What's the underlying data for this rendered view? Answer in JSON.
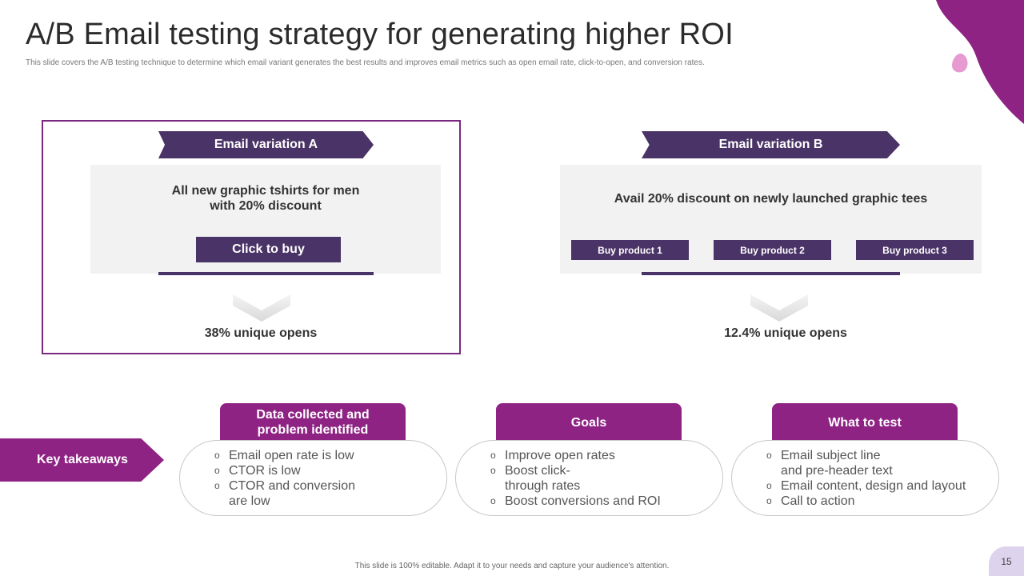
{
  "slide": {
    "title": "A/B Email testing strategy for generating higher ROI",
    "subtitle": "This slide covers the A/B testing technique to determine  which email variant generates the best results and improves email metrics such as open email rate, click-to-open, and conversion rates.",
    "footer": "This slide is 100% editable.  Adapt it to your needs and capture your audience's attention.",
    "page_number": "15"
  },
  "variation_a": {
    "label": "Email variation A",
    "offer_line1": "All new graphic tshirts for men",
    "offer_line2": "with 20% discount",
    "cta": "Click to buy",
    "result": "38% unique opens"
  },
  "variation_b": {
    "label": "Email variation B",
    "offer": "Avail 20% discount on newly launched graphic tees",
    "buttons": [
      "Buy product 1",
      "Buy product 2",
      "Buy product 3"
    ],
    "result": "12.4% unique opens"
  },
  "takeaways": {
    "label": "Key takeaways",
    "columns": [
      {
        "heading_line1": "Data collected and",
        "heading_line2": "problem identified",
        "items": [
          {
            "line1": "Email open rate is low",
            "line2": ""
          },
          {
            "line1": "CTOR is low",
            "line2": ""
          },
          {
            "line1": "CTOR and conversion",
            "line2": "are low"
          }
        ]
      },
      {
        "heading_line1": "Goals",
        "heading_line2": "",
        "items": [
          {
            "line1": "Improve  open rates",
            "line2": ""
          },
          {
            "line1": "Boost click-",
            "line2": "through  rates"
          },
          {
            "line1": "Boost conversions  and ROI",
            "line2": ""
          }
        ]
      },
      {
        "heading_line1": "What to test",
        "heading_line2": "",
        "items": [
          {
            "line1": "Email subject line",
            "line2": "and pre-header text"
          },
          {
            "line1": "Email content,  design and layout",
            "line2": ""
          },
          {
            "line1": "Call to action",
            "line2": ""
          }
        ]
      }
    ],
    "bullet_glyph": "o"
  },
  "colors": {
    "accent_purple": "#8e2384",
    "dark_purple": "#4a3366",
    "frame_purple": "#7a2a7e",
    "panel_gray": "#f2f2f2",
    "pink_drop": "#e79ad0"
  },
  "icons": [
    "chevron-down-icon",
    "corner-decoration-shape",
    "droplet-shape"
  ]
}
